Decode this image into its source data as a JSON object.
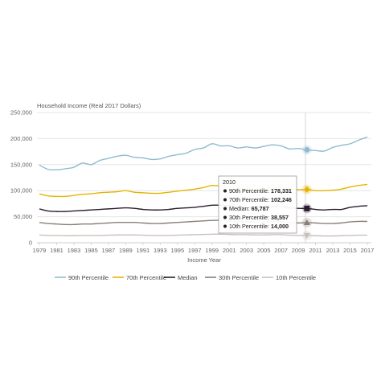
{
  "chart_data": {
    "type": "line",
    "ylabel": "Household Income (Real 2017 Dollars)",
    "xlabel": "Income Year",
    "ylim": [
      0,
      250000
    ],
    "xlim": [
      1979,
      2017
    ],
    "y_ticks": [
      "250,000",
      "200,000",
      "150,000",
      "100,000",
      "50,000",
      "0"
    ],
    "y_tick_values": [
      250000,
      200000,
      150000,
      100000,
      50000,
      0
    ],
    "x_ticks": [
      "1979",
      "1981",
      "1983",
      "1985",
      "1987",
      "1989",
      "1991",
      "1993",
      "1995",
      "1997",
      "1999",
      "2001",
      "2003",
      "2005",
      "2007",
      "2009",
      "2011",
      "2013",
      "2015",
      "2017"
    ],
    "grid": "horizontal",
    "legend_position": "bottom",
    "x": [
      1979,
      1980,
      1981,
      1982,
      1983,
      1984,
      1985,
      1986,
      1987,
      1988,
      1989,
      1990,
      1991,
      1992,
      1993,
      1994,
      1995,
      1996,
      1997,
      1998,
      1999,
      2000,
      2001,
      2002,
      2003,
      2004,
      2005,
      2006,
      2007,
      2008,
      2009,
      2010,
      2011,
      2012,
      2013,
      2014,
      2015,
      2016,
      2017
    ],
    "series": [
      {
        "name": "90th Percentile",
        "color": "#8fbccf",
        "values": [
          149000,
          141000,
          140000,
          142000,
          145000,
          153000,
          150000,
          158000,
          162000,
          166000,
          168000,
          164000,
          163000,
          160000,
          161000,
          166000,
          169000,
          172000,
          179000,
          182000,
          190000,
          186000,
          186000,
          182000,
          184000,
          182000,
          185000,
          188000,
          186000,
          180000,
          181000,
          178331,
          177000,
          176000,
          183000,
          187000,
          190000,
          197000,
          203000
        ]
      },
      {
        "name": "70th Percentile",
        "color": "#e6b400",
        "values": [
          94000,
          90000,
          89000,
          89000,
          91000,
          93000,
          94000,
          96000,
          97000,
          98000,
          100000,
          97000,
          96000,
          95000,
          95000,
          97000,
          99000,
          101000,
          103000,
          106000,
          110000,
          109000,
          108000,
          105000,
          104000,
          103000,
          104000,
          106000,
          107000,
          103000,
          102000,
          102246,
          100000,
          100000,
          101000,
          103000,
          107000,
          110000,
          112000
        ]
      },
      {
        "name": "Median",
        "color": "#2b1d2e",
        "values": [
          65000,
          61000,
          60000,
          60000,
          61000,
          62000,
          63000,
          64000,
          65000,
          66000,
          67000,
          66000,
          64000,
          63000,
          63000,
          64000,
          66000,
          67000,
          68000,
          70000,
          72000,
          72000,
          71000,
          69000,
          68000,
          68000,
          68000,
          69000,
          70000,
          67000,
          66000,
          65787,
          64000,
          63000,
          64000,
          64000,
          68000,
          70000,
          71000
        ]
      },
      {
        "name": "30th Percentile",
        "color": "#8a7f78",
        "values": [
          39000,
          37000,
          36000,
          35000,
          35000,
          36000,
          36000,
          37000,
          38000,
          39000,
          39000,
          39000,
          38000,
          37000,
          37000,
          38000,
          39000,
          40000,
          41000,
          42000,
          43000,
          43000,
          42000,
          41000,
          41000,
          40000,
          40000,
          41000,
          41000,
          39000,
          38000,
          38557,
          38000,
          37000,
          37000,
          38000,
          40000,
          41000,
          41000
        ]
      },
      {
        "name": "10th Percentile",
        "color": "#c9bfba",
        "values": [
          15000,
          14000,
          14000,
          13500,
          13500,
          14000,
          14000,
          14000,
          14500,
          15000,
          15000,
          15000,
          14500,
          14000,
          14000,
          14000,
          14500,
          15000,
          15500,
          16000,
          16500,
          16500,
          16000,
          15500,
          15500,
          15000,
          15000,
          15500,
          15500,
          14500,
          14000,
          14000,
          13500,
          13000,
          13000,
          13500,
          14000,
          14500,
          14500
        ]
      }
    ],
    "tooltip": {
      "title": "2010",
      "x": 2010,
      "rows": [
        {
          "label": "90th Percentile",
          "value": "178,331"
        },
        {
          "label": "70th Percentile",
          "value": "102,246"
        },
        {
          "label": "Median",
          "value": "65,787"
        },
        {
          "label": "30th Percentile",
          "value": "38,557"
        },
        {
          "label": "10th Percentile",
          "value": "14,000"
        }
      ]
    }
  }
}
